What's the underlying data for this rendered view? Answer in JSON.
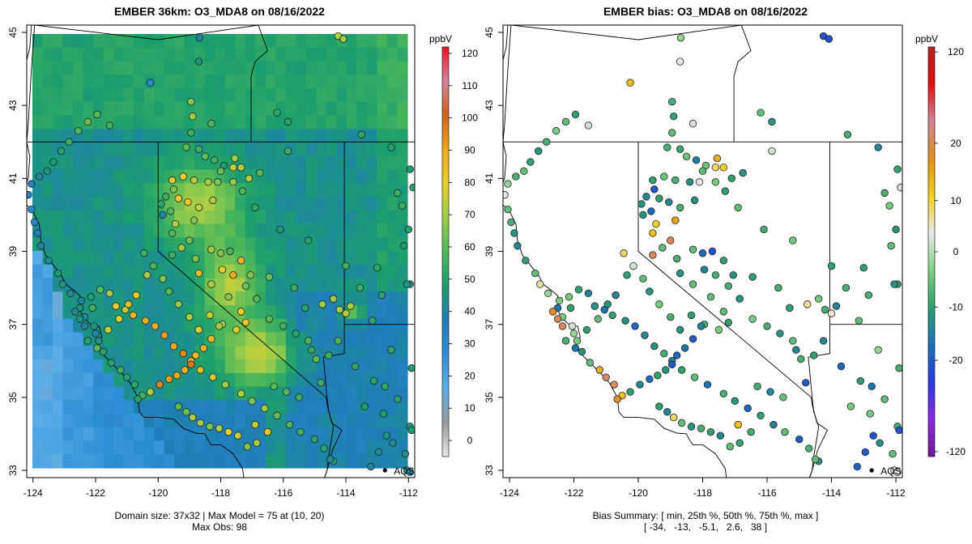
{
  "chart_data": [
    {
      "type": "map",
      "title": "EMBER 36km: O3_MDA8 on 08/16/2022",
      "xlim": [
        -124.2,
        -111.8
      ],
      "ylim": [
        32.8,
        45.2
      ],
      "x_ticks": [
        -124,
        -122,
        -120,
        -118,
        -116,
        -114,
        -112
      ],
      "y_ticks": [
        33,
        35,
        37,
        39,
        41,
        43,
        45
      ],
      "colorbar": {
        "label": "ppbV",
        "range": [
          -5,
          122
        ],
        "ticks": [
          0,
          10,
          20,
          30,
          40,
          50,
          60,
          70,
          80,
          90,
          100,
          110,
          120
        ],
        "stops": [
          "#e8e8e8",
          "#999999",
          "#5aaee8",
          "#2f8fd6",
          "#1f7db8",
          "#1b9e6e",
          "#4db85a",
          "#9ccc4a",
          "#e6d02c",
          "#eeaa20",
          "#d06018",
          "#d2849a",
          "#f01020"
        ]
      },
      "marker": {
        "label": "AQS",
        "lon": -112.75,
        "lat": 33.0
      },
      "footer_line1": "Domain size: 37x32 | Max Model = 75 at (10, 20)",
      "footer_line2": "Max Obs: 98"
    },
    {
      "type": "map",
      "title": "EMBER bias: O3_MDA8 on 08/16/2022",
      "xlim": [
        -124.2,
        -111.8
      ],
      "ylim": [
        32.8,
        45.2
      ],
      "x_ticks": [
        -124,
        -122,
        -120,
        -118,
        -116,
        -114,
        -112
      ],
      "y_ticks": [
        33,
        35,
        37,
        39,
        41,
        43,
        45
      ],
      "colorbar": {
        "label": "ppbV",
        "range": [
          -123,
          123
        ],
        "ticks": [
          120,
          20,
          10,
          0,
          -10,
          -20,
          -120
        ],
        "tick_fracs": [
          0.012,
          0.235,
          0.375,
          0.5,
          0.635,
          0.765,
          0.988
        ],
        "stops": [
          "#b22222",
          "#e01010",
          "#d2849a",
          "#e0901a",
          "#f0d020",
          "#e8e8e8",
          "#7fcf7f",
          "#2e9e6e",
          "#1a6fb8",
          "#2a3ae0",
          "#8a2ae0",
          "#6a1a90"
        ]
      },
      "marker": {
        "label": "AQS",
        "lon": -112.75,
        "lat": 33.0
      },
      "footer_line1": "Bias Summary: [ min, 25th %, 50th %, 75th %, max ]",
      "footer_line2": "[ -34,   -13,   -5.1,   2.6,   38 ]"
    }
  ]
}
